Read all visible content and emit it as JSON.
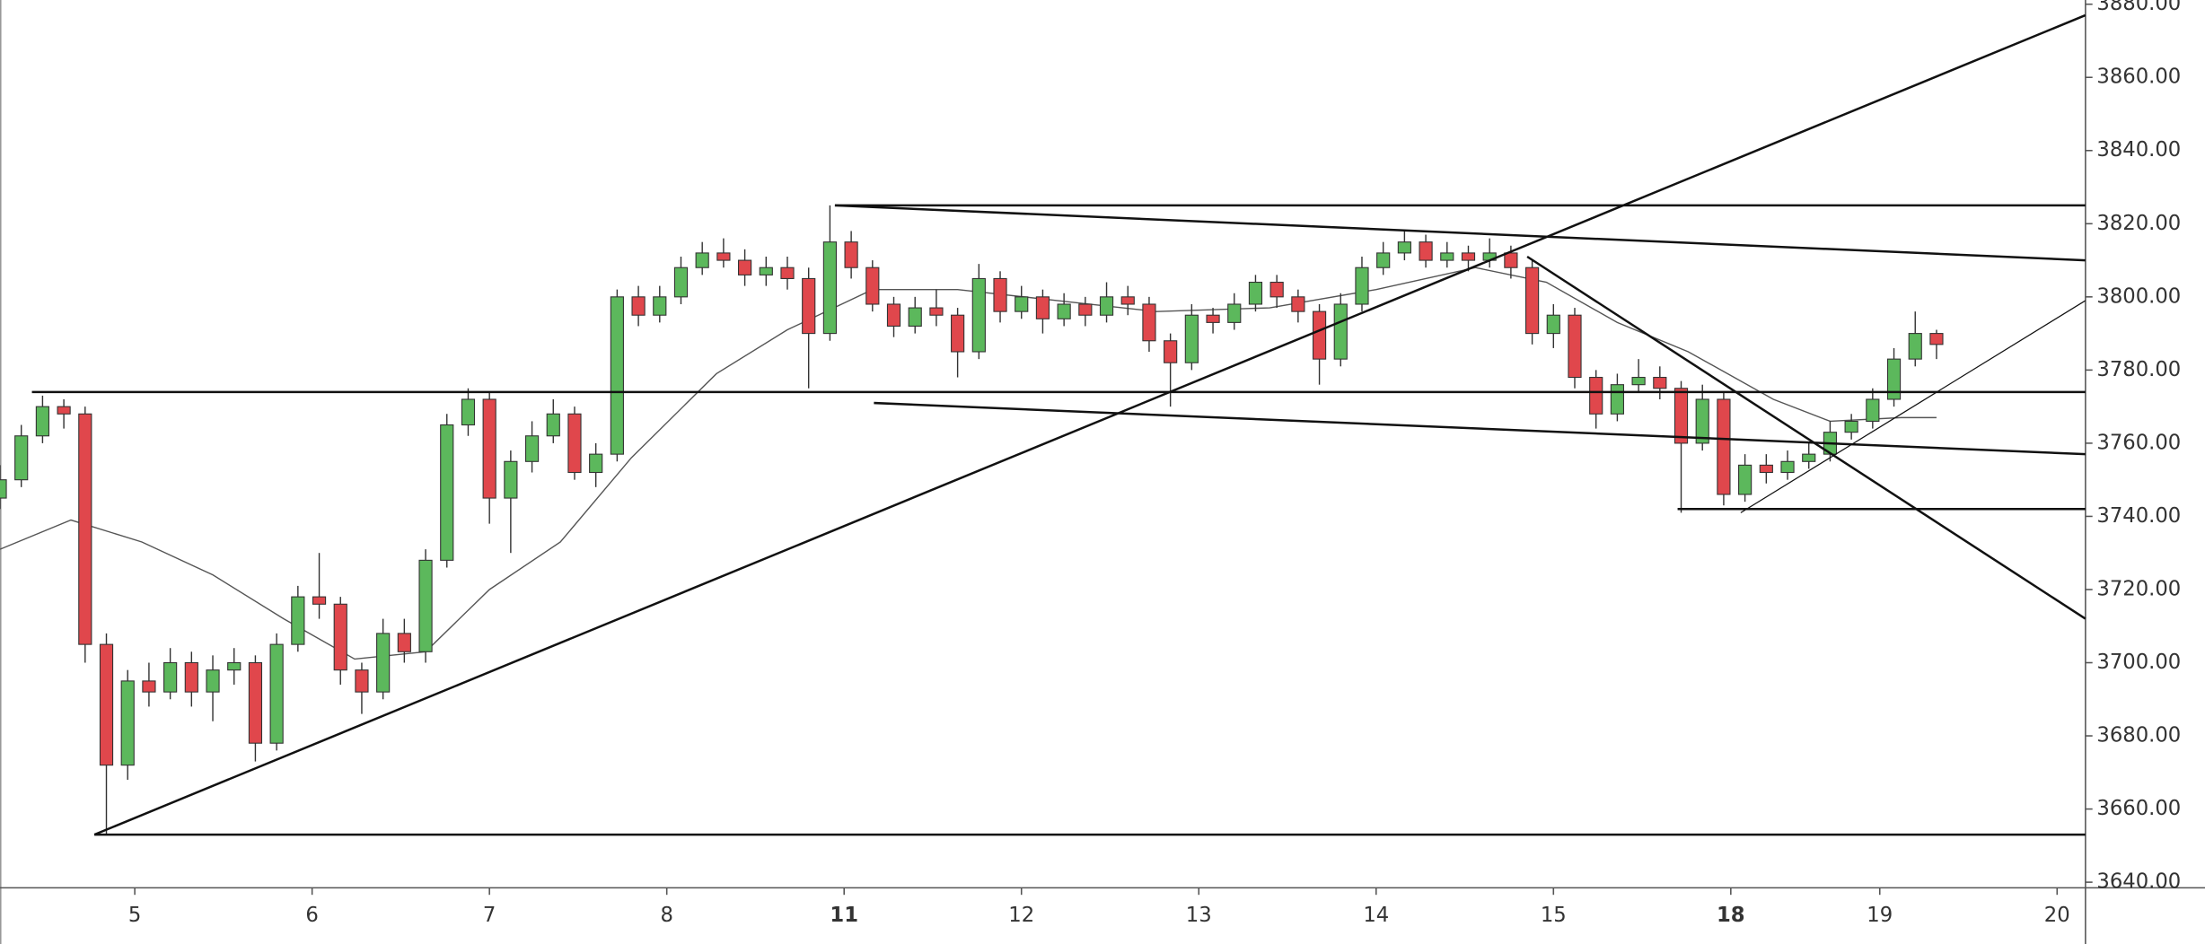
{
  "chart_data": {
    "type": "candlestick",
    "x": [
      0,
      3,
      6,
      9,
      12,
      15,
      18,
      21,
      24,
      27,
      30,
      33,
      36,
      39,
      42,
      45,
      48,
      51,
      54,
      57,
      60,
      63,
      66,
      69,
      72,
      75,
      78,
      81,
      84,
      87,
      90,
      93,
      96,
      99,
      102,
      105,
      108,
      111,
      114,
      117,
      120,
      123,
      126,
      129,
      132,
      135,
      138,
      141,
      144,
      147,
      150,
      153,
      156,
      159,
      162,
      165,
      168,
      171,
      174,
      177,
      180,
      183,
      186,
      189,
      192,
      195,
      198,
      201,
      204,
      207,
      210,
      213,
      216,
      219,
      222,
      225,
      228,
      231,
      234,
      237,
      240,
      243,
      246,
      249,
      252,
      255,
      258,
      261,
      264,
      267,
      270,
      273
    ],
    "ohlc": [
      [
        3745,
        3754,
        3742,
        3750
      ],
      [
        3750,
        3765,
        3748,
        3762
      ],
      [
        3762,
        3773,
        3760,
        3770
      ],
      [
        3770,
        3772,
        3764,
        3768
      ],
      [
        3768,
        3770,
        3700,
        3705
      ],
      [
        3705,
        3708,
        3653,
        3672
      ],
      [
        3672,
        3698,
        3668,
        3695
      ],
      [
        3695,
        3700,
        3688,
        3692
      ],
      [
        3692,
        3704,
        3690,
        3700
      ],
      [
        3700,
        3703,
        3688,
        3692
      ],
      [
        3692,
        3702,
        3684,
        3698
      ],
      [
        3698,
        3704,
        3694,
        3700
      ],
      [
        3700,
        3702,
        3673,
        3678
      ],
      [
        3678,
        3708,
        3676,
        3705
      ],
      [
        3705,
        3721,
        3703,
        3718
      ],
      [
        3718,
        3730,
        3712,
        3716
      ],
      [
        3716,
        3718,
        3694,
        3698
      ],
      [
        3698,
        3700,
        3686,
        3692
      ],
      [
        3692,
        3712,
        3690,
        3708
      ],
      [
        3708,
        3712,
        3700,
        3703
      ],
      [
        3703,
        3731,
        3700,
        3728
      ],
      [
        3728,
        3768,
        3726,
        3765
      ],
      [
        3765,
        3775,
        3762,
        3772
      ],
      [
        3772,
        3774,
        3738,
        3745
      ],
      [
        3745,
        3758,
        3730,
        3755
      ],
      [
        3755,
        3766,
        3752,
        3762
      ],
      [
        3762,
        3772,
        3760,
        3768
      ],
      [
        3768,
        3770,
        3750,
        3752
      ],
      [
        3752,
        3760,
        3748,
        3757
      ],
      [
        3757,
        3802,
        3755,
        3800
      ],
      [
        3800,
        3803,
        3792,
        3795
      ],
      [
        3795,
        3803,
        3793,
        3800
      ],
      [
        3800,
        3811,
        3798,
        3808
      ],
      [
        3808,
        3815,
        3806,
        3812
      ],
      [
        3812,
        3816,
        3808,
        3810
      ],
      [
        3810,
        3813,
        3803,
        3806
      ],
      [
        3806,
        3811,
        3803,
        3808
      ],
      [
        3808,
        3811,
        3802,
        3805
      ],
      [
        3805,
        3808,
        3775,
        3790
      ],
      [
        3790,
        3825,
        3788,
        3815
      ],
      [
        3815,
        3818,
        3805,
        3808
      ],
      [
        3808,
        3810,
        3796,
        3798
      ],
      [
        3798,
        3800,
        3789,
        3792
      ],
      [
        3792,
        3800,
        3790,
        3797
      ],
      [
        3797,
        3802,
        3792,
        3795
      ],
      [
        3795,
        3797,
        3778,
        3785
      ],
      [
        3785,
        3809,
        3783,
        3805
      ],
      [
        3805,
        3807,
        3793,
        3796
      ],
      [
        3796,
        3803,
        3794,
        3800
      ],
      [
        3800,
        3802,
        3790,
        3794
      ],
      [
        3794,
        3801,
        3792,
        3798
      ],
      [
        3798,
        3800,
        3792,
        3795
      ],
      [
        3795,
        3804,
        3793,
        3800
      ],
      [
        3800,
        3803,
        3795,
        3798
      ],
      [
        3798,
        3800,
        3785,
        3788
      ],
      [
        3788,
        3790,
        3770,
        3782
      ],
      [
        3782,
        3798,
        3780,
        3795
      ],
      [
        3795,
        3797,
        3790,
        3793
      ],
      [
        3793,
        3801,
        3791,
        3798
      ],
      [
        3798,
        3806,
        3796,
        3804
      ],
      [
        3804,
        3806,
        3797,
        3800
      ],
      [
        3800,
        3802,
        3793,
        3796
      ],
      [
        3796,
        3798,
        3776,
        3783
      ],
      [
        3783,
        3801,
        3781,
        3798
      ],
      [
        3798,
        3811,
        3796,
        3808
      ],
      [
        3808,
        3815,
        3806,
        3812
      ],
      [
        3812,
        3818,
        3810,
        3815
      ],
      [
        3815,
        3817,
        3808,
        3810
      ],
      [
        3810,
        3815,
        3808,
        3812
      ],
      [
        3812,
        3814,
        3807,
        3810
      ],
      [
        3810,
        3816,
        3808,
        3812
      ],
      [
        3812,
        3814,
        3805,
        3808
      ],
      [
        3808,
        3810,
        3787,
        3790
      ],
      [
        3790,
        3798,
        3786,
        3795
      ],
      [
        3795,
        3797,
        3775,
        3778
      ],
      [
        3778,
        3780,
        3764,
        3768
      ],
      [
        3768,
        3779,
        3766,
        3776
      ],
      [
        3776,
        3783,
        3774,
        3778
      ],
      [
        3778,
        3781,
        3772,
        3775
      ],
      [
        3775,
        3777,
        3741,
        3760
      ],
      [
        3760,
        3776,
        3758,
        3772
      ],
      [
        3772,
        3774,
        3743,
        3746
      ],
      [
        3746,
        3757,
        3744,
        3754
      ],
      [
        3754,
        3757,
        3749,
        3752
      ],
      [
        3752,
        3758,
        3750,
        3755
      ],
      [
        3755,
        3760,
        3753,
        3757
      ],
      [
        3757,
        3766,
        3755,
        3763
      ],
      [
        3763,
        3768,
        3761,
        3766
      ],
      [
        3766,
        3775,
        3764,
        3772
      ],
      [
        3772,
        3786,
        3770,
        3783
      ],
      [
        3783,
        3796,
        3781,
        3790
      ],
      [
        3790,
        3791,
        3783,
        3787
      ]
    ],
    "up_color": "#5cb85c",
    "down_color": "#e0474c",
    "outline_color": "#333333",
    "moving_average": {
      "x": [
        0,
        10,
        20,
        30,
        40,
        50,
        60,
        69,
        79,
        89,
        101,
        111,
        123,
        135,
        149,
        163,
        179,
        194,
        208,
        218,
        228,
        238,
        250,
        258,
        268,
        273
      ],
      "values": [
        3731,
        3739,
        3733,
        3724,
        3712,
        3701,
        3703,
        3720,
        3733,
        3756,
        3779,
        3791,
        3802,
        3802,
        3799,
        3796,
        3797,
        3802,
        3808,
        3804,
        3793,
        3785,
        3772,
        3766,
        3767,
        3767
      ],
      "color": "#555555"
    },
    "trendlines": [
      {
        "x": [
          4.5,
          294
        ],
        "y": [
          3774,
          3774
        ],
        "width": 1.6
      },
      {
        "x": [
          117.7,
          294
        ],
        "y": [
          3825,
          3825
        ],
        "width": 1.6
      },
      {
        "x": [
          117.7,
          294
        ],
        "y": [
          3825,
          3810
        ],
        "width": 1.6
      },
      {
        "x": [
          13.3,
          294
        ],
        "y": [
          3653,
          3877
        ],
        "width": 1.6
      },
      {
        "x": [
          123.2,
          294
        ],
        "y": [
          3771,
          3757
        ],
        "width": 1.6
      },
      {
        "x": [
          215.3,
          294
        ],
        "y": [
          3811,
          3712
        ],
        "width": 1.6
      },
      {
        "x": [
          13.3,
          294
        ],
        "y": [
          3653,
          3653
        ],
        "width": 1.6
      },
      {
        "x": [
          236.5,
          294
        ],
        "y": [
          3742,
          3742
        ],
        "width": 1.6
      },
      {
        "x": [
          245.4,
          294
        ],
        "y": [
          3741,
          3799
        ],
        "width": 0.8
      }
    ],
    "xlim": [
      0,
      294
    ],
    "ylim": [
      3640,
      3880
    ],
    "xticks": [
      {
        "value": 19,
        "label": "5"
      },
      {
        "value": 44,
        "label": "6"
      },
      {
        "value": 69,
        "label": "7"
      },
      {
        "value": 94,
        "label": "8"
      },
      {
        "value": 119,
        "label": "11",
        "bold": true
      },
      {
        "value": 144,
        "label": "12"
      },
      {
        "value": 169,
        "label": "13"
      },
      {
        "value": 194,
        "label": "14"
      },
      {
        "value": 219,
        "label": "15"
      },
      {
        "value": 244,
        "label": "18",
        "bold": true
      },
      {
        "value": 265,
        "label": "19"
      },
      {
        "value": 290,
        "label": "20"
      }
    ],
    "yticks": [
      {
        "value": 3640,
        "label": "3640.00"
      },
      {
        "value": 3660,
        "label": "3660.00"
      },
      {
        "value": 3680,
        "label": "3680.00"
      },
      {
        "value": 3700,
        "label": "3700.00"
      },
      {
        "value": 3720,
        "label": "3720.00"
      },
      {
        "value": 3740,
        "label": "3740.00"
      },
      {
        "value": 3760,
        "label": "3760.00"
      },
      {
        "value": 3780,
        "label": "3780.00"
      },
      {
        "value": 3800,
        "label": "3800.00"
      },
      {
        "value": 3820,
        "label": "3820.00"
      },
      {
        "value": 3840,
        "label": "3840.00"
      },
      {
        "value": 3860,
        "label": "3860.00"
      },
      {
        "value": 3880,
        "label": "3880.00"
      }
    ]
  }
}
